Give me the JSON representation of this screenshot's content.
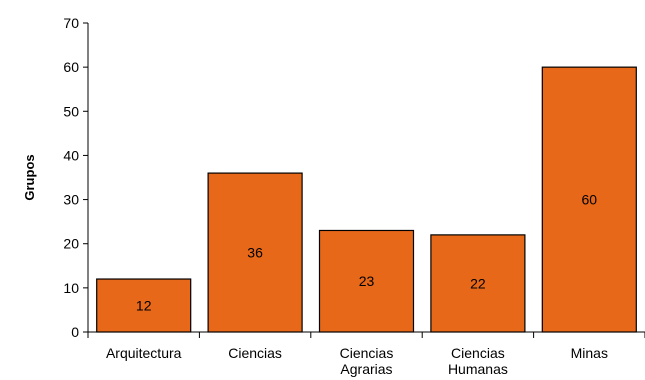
{
  "chart_data": {
    "type": "bar",
    "categories": [
      [
        "Arquitectura"
      ],
      [
        "Ciencias"
      ],
      [
        "Ciencias",
        "Agrarias"
      ],
      [
        "Ciencias",
        "Humanas"
      ],
      [
        "Minas"
      ]
    ],
    "values": [
      12,
      36,
      23,
      22,
      60
    ],
    "ylabel": "Grupos",
    "ylim": [
      0,
      70
    ],
    "yticks": [
      0,
      10,
      20,
      30,
      40,
      50,
      60,
      70
    ],
    "grid": false,
    "legend": "none",
    "bar_color": "#E8681A",
    "bar_stroke": "#000000"
  }
}
